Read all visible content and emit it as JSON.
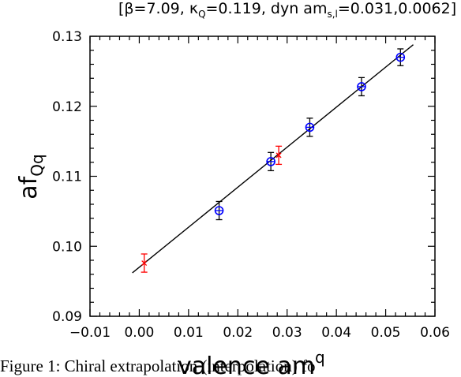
{
  "chart_data": {
    "type": "scatter",
    "title": "[β=7.09, κ_Q=0.119, dyn am_s,l=0.031,0.0062]",
    "title_parts": {
      "open": "[",
      "beta": "β=7.09,",
      "kappa_sym": "κ",
      "kappa_sub": "Q",
      "kappa_val": "=0.119,",
      "dyn": "dyn am",
      "dyn_sub": "s,l",
      "dyn_val": "=0.031,0.0062]"
    },
    "xlabel": "valence am",
    "xlabel_sub": "q",
    "ylabel": "af",
    "ylabel_sub": "Qq",
    "xlim": [
      -0.01,
      0.06
    ],
    "ylim": [
      0.09,
      0.13
    ],
    "xticks": [
      "−0.01",
      "0.00",
      "0.01",
      "0.02",
      "0.03",
      "0.04",
      "0.05",
      "0.06"
    ],
    "yticks": [
      "0.09",
      "0.10",
      "0.11",
      "0.12",
      "0.13"
    ],
    "series": [
      {
        "marker": "circle-plus",
        "color": "#0000ff",
        "points": [
          {
            "x": 0.0162,
            "y": 0.1051,
            "err": 0.0013
          },
          {
            "x": 0.0267,
            "y": 0.1121,
            "err": 0.0013
          },
          {
            "x": 0.0346,
            "y": 0.117,
            "err": 0.0013
          },
          {
            "x": 0.0451,
            "y": 0.1228,
            "err": 0.0013
          },
          {
            "x": 0.053,
            "y": 0.127,
            "err": 0.0012
          }
        ]
      },
      {
        "marker": "cross",
        "color": "#ff0000",
        "points": [
          {
            "x": 0.001,
            "y": 0.0976,
            "err": 0.0013
          },
          {
            "x": 0.0283,
            "y": 0.113,
            "err": 0.0013
          }
        ]
      }
    ],
    "fit_line": {
      "x": [
        -0.0014,
        0.0556
      ],
      "y": [
        0.0962,
        0.1288
      ]
    },
    "grid": false
  },
  "caption": "Figure 1: Chiral extrapolation (interpolation) fo"
}
